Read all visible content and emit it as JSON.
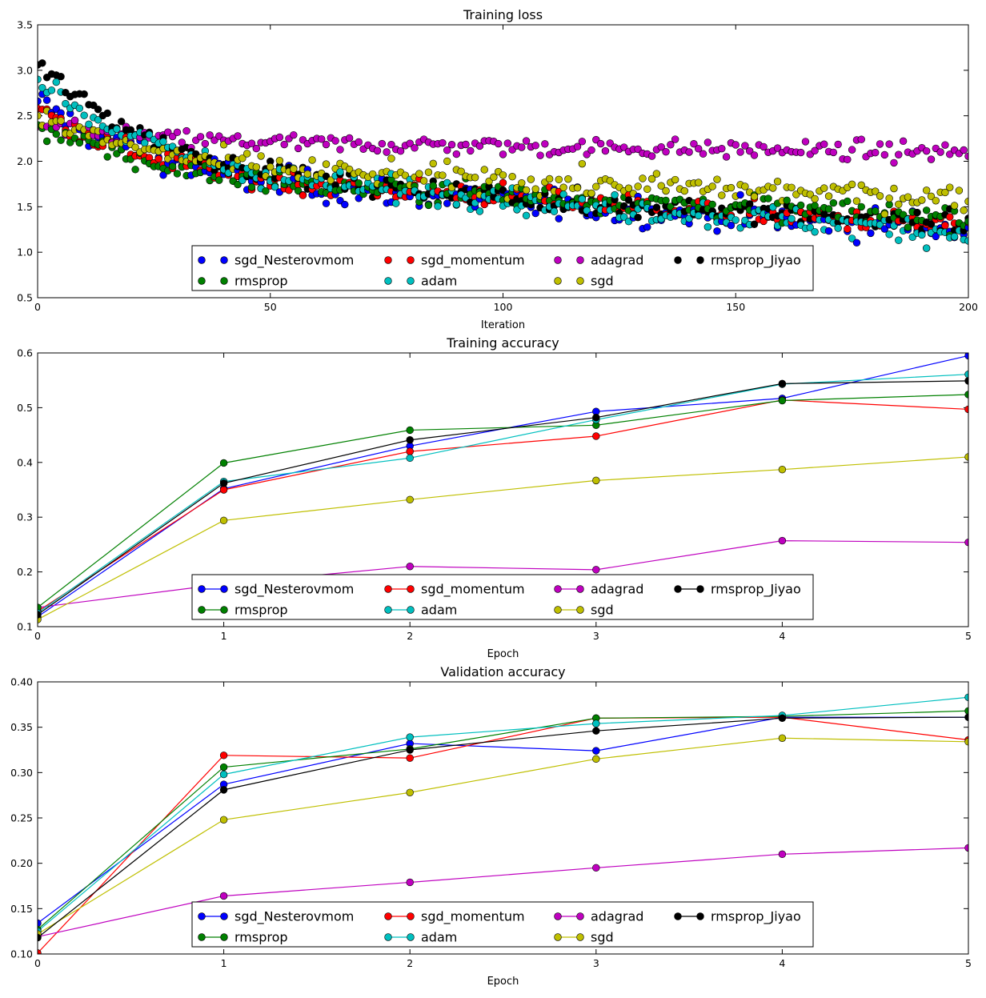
{
  "colors": {
    "sgd_Nesterovmom": "#0000ff",
    "rmsprop": "#008000",
    "sgd_momentum": "#ff0000",
    "adam": "#00bfbf",
    "adagrad": "#bf00bf",
    "sgd": "#bfbf00",
    "rmsprop_Jiyao": "#000000"
  },
  "chart_data": [
    {
      "type": "scatter",
      "title": "Training loss",
      "xlabel": "Iteration",
      "ylabel": "",
      "xlim": [
        0,
        200
      ],
      "ylim": [
        0.5,
        3.5
      ],
      "xticks": [
        0,
        50,
        100,
        150,
        200
      ],
      "yticks": [
        0.5,
        1.0,
        1.5,
        2.0,
        2.5,
        3.0,
        3.5
      ],
      "ytick_decimals": 1,
      "n_points": 201,
      "legend": {
        "placement": "lower center",
        "columns": 4,
        "entries": [
          "sgd_Nesterovmom",
          "sgd_momentum",
          "adagrad",
          "rmsprop_Jiyao",
          "rmsprop",
          "adam",
          "sgd"
        ]
      },
      "series": [
        {
          "name": "sgd_Nesterovmom",
          "start": 2.66,
          "mid": 1.55,
          "mid_at": 100,
          "end": 1.25,
          "noise": 0.12
        },
        {
          "name": "sgd_momentum",
          "start": 2.58,
          "mid": 1.6,
          "mid_at": 100,
          "end": 1.28,
          "noise": 0.09
        },
        {
          "name": "adagrad",
          "start": 2.38,
          "mid": 2.16,
          "mid_at": 100,
          "end": 2.1,
          "noise": 0.07
        },
        {
          "name": "rmsprop_Jiyao",
          "start": 3.06,
          "mid": 1.58,
          "mid_at": 100,
          "end": 1.32,
          "noise": 0.08
        },
        {
          "name": "rmsprop",
          "start": 2.4,
          "mid": 1.62,
          "mid_at": 100,
          "end": 1.38,
          "noise": 0.09
        },
        {
          "name": "adam",
          "start": 2.9,
          "mid": 1.58,
          "mid_at": 100,
          "end": 1.2,
          "noise": 0.1
        },
        {
          "name": "sgd",
          "start": 2.5,
          "mid": 1.78,
          "mid_at": 100,
          "end": 1.6,
          "noise": 0.1
        }
      ]
    },
    {
      "type": "line",
      "title": "Training accuracy",
      "xlabel": "Epoch",
      "ylabel": "",
      "xlim": [
        0,
        5
      ],
      "ylim": [
        0.1,
        0.6
      ],
      "xticks": [
        0,
        1,
        2,
        3,
        4,
        5
      ],
      "yticks": [
        0.1,
        0.2,
        0.3,
        0.4,
        0.5,
        0.6
      ],
      "ytick_decimals": 1,
      "x": [
        0,
        1,
        2,
        3,
        4,
        5
      ],
      "legend": {
        "placement": "lower center",
        "columns": 4,
        "entries": [
          "sgd_Nesterovmom",
          "sgd_momentum",
          "adagrad",
          "rmsprop_Jiyao",
          "rmsprop",
          "adam",
          "sgd"
        ]
      },
      "series": [
        {
          "name": "sgd_Nesterovmom",
          "values": [
            0.118,
            0.352,
            0.43,
            0.493,
            0.517,
            0.595
          ]
        },
        {
          "name": "sgd_momentum",
          "values": [
            0.128,
            0.35,
            0.42,
            0.448,
            0.514,
            0.497
          ]
        },
        {
          "name": "adagrad",
          "values": [
            0.135,
            0.178,
            0.21,
            0.204,
            0.257,
            0.254
          ]
        },
        {
          "name": "rmsprop",
          "values": [
            0.135,
            0.399,
            0.459,
            0.468,
            0.513,
            0.524
          ]
        },
        {
          "name": "adam",
          "values": [
            0.125,
            0.365,
            0.408,
            0.478,
            0.543,
            0.561
          ]
        },
        {
          "name": "sgd",
          "values": [
            0.113,
            0.294,
            0.332,
            0.367,
            0.387,
            0.41
          ]
        },
        {
          "name": "rmsprop_Jiyao",
          "values": [
            0.122,
            0.362,
            0.441,
            0.482,
            0.544,
            0.549
          ]
        }
      ]
    },
    {
      "type": "line",
      "title": "Validation accuracy",
      "xlabel": "Epoch",
      "ylabel": "",
      "xlim": [
        0,
        5
      ],
      "ylim": [
        0.1,
        0.4
      ],
      "xticks": [
        0,
        1,
        2,
        3,
        4,
        5
      ],
      "yticks": [
        0.1,
        0.15,
        0.2,
        0.25,
        0.3,
        0.35,
        0.4
      ],
      "ytick_decimals": 2,
      "x": [
        0,
        1,
        2,
        3,
        4,
        5
      ],
      "legend": {
        "placement": "lower center",
        "columns": 4,
        "entries": [
          "sgd_Nesterovmom",
          "sgd_momentum",
          "adagrad",
          "rmsprop_Jiyao",
          "rmsprop",
          "adam",
          "sgd"
        ]
      },
      "series": [
        {
          "name": "sgd_Nesterovmom",
          "values": [
            0.134,
            0.287,
            0.332,
            0.324,
            0.361,
            0.361
          ]
        },
        {
          "name": "sgd_momentum",
          "values": [
            0.101,
            0.319,
            0.316,
            0.36,
            0.361,
            0.336
          ]
        },
        {
          "name": "adagrad",
          "values": [
            0.119,
            0.164,
            0.179,
            0.195,
            0.21,
            0.217
          ]
        },
        {
          "name": "rmsprop",
          "values": [
            0.127,
            0.306,
            0.326,
            0.36,
            0.362,
            0.368
          ]
        },
        {
          "name": "adam",
          "values": [
            0.125,
            0.298,
            0.339,
            0.354,
            0.363,
            0.383
          ]
        },
        {
          "name": "sgd",
          "values": [
            0.122,
            0.248,
            0.278,
            0.315,
            0.338,
            0.334
          ]
        },
        {
          "name": "rmsprop_Jiyao",
          "values": [
            0.118,
            0.281,
            0.325,
            0.346,
            0.36,
            0.361
          ]
        }
      ]
    }
  ]
}
